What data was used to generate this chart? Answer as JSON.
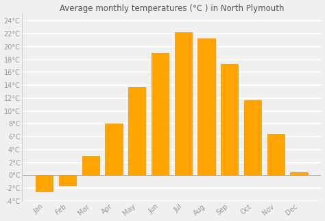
{
  "title": "Average monthly temperatures (°C ) in North Plymouth",
  "months": [
    "Jan",
    "Feb",
    "Mar",
    "Apr",
    "May",
    "Jun",
    "Jul",
    "Aug",
    "Sep",
    "Oct",
    "Nov",
    "Dec"
  ],
  "values": [
    -2.5,
    -1.5,
    3.0,
    8.0,
    13.7,
    19.0,
    22.2,
    21.3,
    17.3,
    11.7,
    6.5,
    0.5
  ],
  "bar_color": "#FFA500",
  "bar_edge_color": "#FF8C00",
  "ylim": [
    -4,
    25
  ],
  "yticks": [
    -4,
    -2,
    0,
    2,
    4,
    6,
    8,
    10,
    12,
    14,
    16,
    18,
    20,
    22,
    24
  ],
  "ytick_labels": [
    "-4°C",
    "-2°C",
    "0°C",
    "2°C",
    "4°C",
    "6°C",
    "8°C",
    "10°C",
    "12°C",
    "14°C",
    "16°C",
    "18°C",
    "20°C",
    "22°C",
    "24°C"
  ],
  "background_color": "#f0f0f0",
  "plot_bg_color": "#f0f0f0",
  "grid_color": "#ffffff",
  "title_fontsize": 8.5,
  "tick_fontsize": 7,
  "bar_width": 0.75,
  "title_color": "#555555",
  "tick_color": "#999999"
}
